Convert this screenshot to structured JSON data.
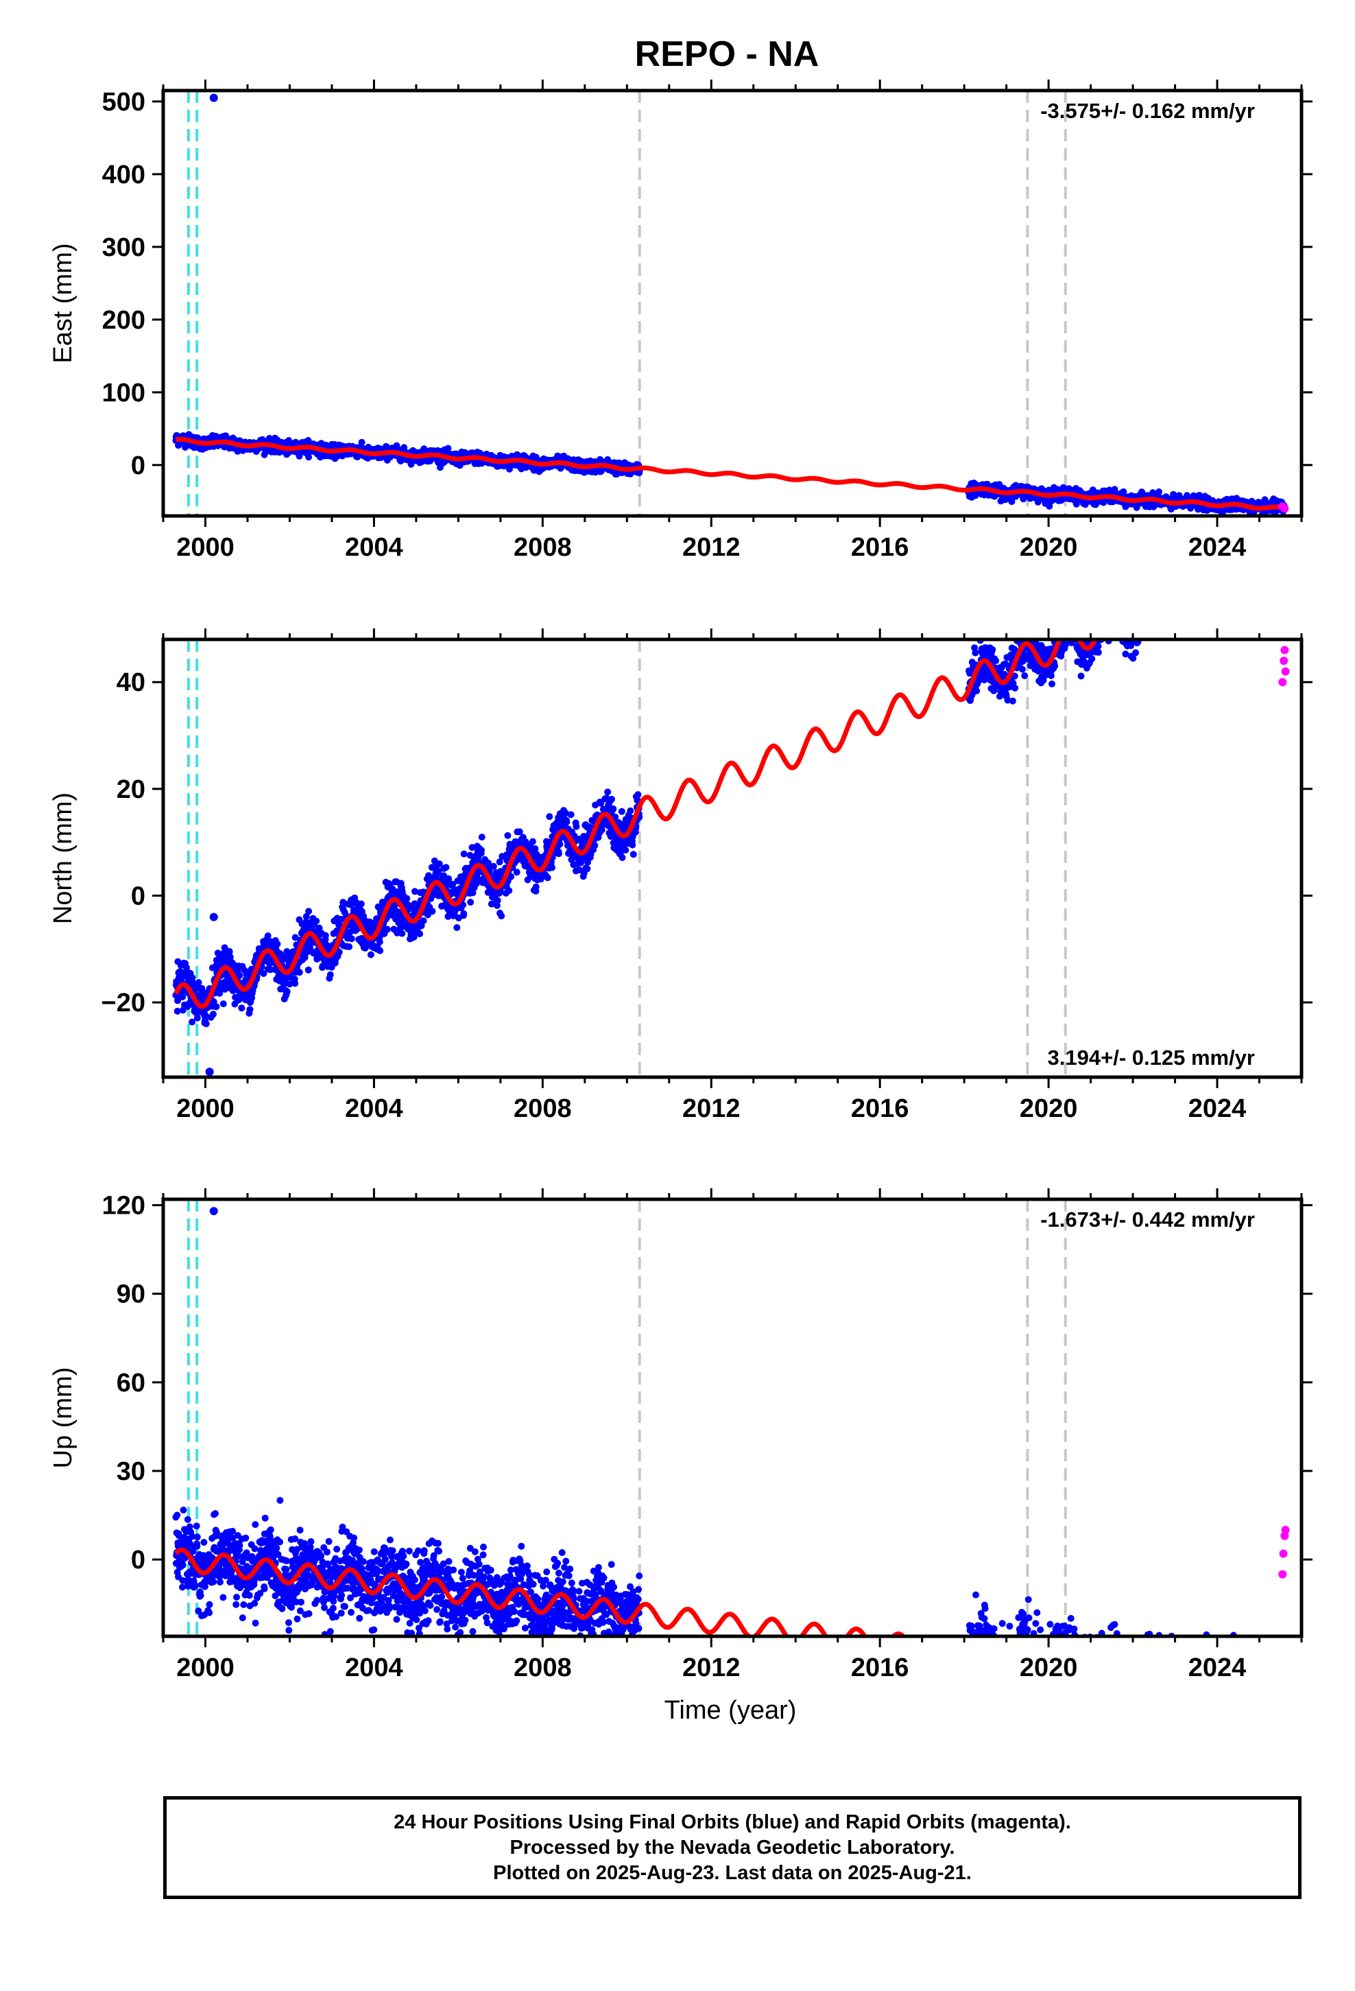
{
  "title": "REPO - NA",
  "xlabel": "Time (year)",
  "footer": {
    "line1": "24 Hour Positions Using Final Orbits (blue) and Rapid Orbits (magenta).",
    "line2": "Processed by the Nevada Geodetic Laboratory.",
    "line3": "Plotted on 2025-Aug-23. Last data on 2025-Aug-21."
  },
  "colors": {
    "final_orbits": "#0000ff",
    "rapid_orbits": "#ff00ff",
    "model": "#ff0000",
    "equipment_change": "#c8c8c8",
    "antenna_change": "#40e0e0"
  },
  "chart_data": [
    {
      "type": "scatter",
      "ylabel": "East (mm)",
      "xlim": [
        1999.0,
        2026.0
      ],
      "ylim": [
        -70,
        515
      ],
      "xticks": [
        2000,
        2004,
        2008,
        2012,
        2016,
        2020,
        2024
      ],
      "yticks": [
        0,
        100,
        200,
        300,
        400,
        500
      ],
      "annotation": "-3.575+/- 0.162 mm/yr",
      "annotation_position": "top-right",
      "grid": false,
      "model": {
        "x0": 1999.3,
        "y0": 34,
        "rate": -3.575,
        "amplitude": 1.8,
        "data_intervals": [
          [
            1999.3,
            2010.3
          ],
          [
            2018.1,
            2025.6
          ]
        ],
        "gap_intervals": [
          [
            2010.3,
            2018.1
          ]
        ]
      },
      "scatter_spread": 4,
      "outliers": [
        {
          "x": 2000.2,
          "y": 505
        }
      ],
      "rapid_points": [
        {
          "x": 2025.55,
          "y": -57
        },
        {
          "x": 2025.6,
          "y": -60
        }
      ],
      "vertical_lines": [
        {
          "x": 1999.6,
          "kind": "antenna"
        },
        {
          "x": 1999.8,
          "kind": "antenna"
        },
        {
          "x": 2010.3,
          "kind": "equipment"
        },
        {
          "x": 2019.5,
          "kind": "equipment"
        },
        {
          "x": 2020.4,
          "kind": "equipment"
        }
      ]
    },
    {
      "type": "scatter",
      "ylabel": "North (mm)",
      "xlim": [
        1999.0,
        2026.0
      ],
      "ylim": [
        -34,
        48
      ],
      "xticks": [
        2000,
        2004,
        2008,
        2012,
        2016,
        2020,
        2024
      ],
      "yticks": [
        -20,
        0,
        20,
        40
      ],
      "annotation": "3.194+/- 0.125 mm/yr",
      "annotation_position": "bottom-right",
      "grid": false,
      "model": {
        "x0": 1999.3,
        "y0": -20,
        "rate": 3.194,
        "amplitude": 2.8,
        "data_intervals": [
          [
            1999.3,
            2010.3
          ],
          [
            2018.1,
            2025.6
          ]
        ],
        "gap_intervals": [
          [
            2010.3,
            2018.1
          ]
        ]
      },
      "scatter_spread": 2,
      "outliers": [
        {
          "x": 2000.2,
          "y": -4
        },
        {
          "x": 2000.1,
          "y": -33
        }
      ],
      "rapid_points": [
        {
          "x": 2025.55,
          "y": 40
        },
        {
          "x": 2025.58,
          "y": 44
        },
        {
          "x": 2025.6,
          "y": 46
        },
        {
          "x": 2025.62,
          "y": 42
        }
      ],
      "vertical_lines": [
        {
          "x": 1999.6,
          "kind": "antenna"
        },
        {
          "x": 1999.8,
          "kind": "antenna"
        },
        {
          "x": 2010.3,
          "kind": "equipment"
        },
        {
          "x": 2019.5,
          "kind": "equipment"
        },
        {
          "x": 2020.4,
          "kind": "equipment"
        }
      ]
    },
    {
      "type": "scatter",
      "ylabel": "Up (mm)",
      "xlim": [
        1999.0,
        2026.0
      ],
      "ylim": [
        -26,
        122
      ],
      "xticks": [
        2000,
        2004,
        2008,
        2012,
        2016,
        2020,
        2024
      ],
      "yticks": [
        0,
        30,
        60,
        90,
        120
      ],
      "annotation": "-1.673+/- 0.442 mm/yr",
      "annotation_position": "top-right",
      "grid": false,
      "model": {
        "x0": 1999.3,
        "y0": 0,
        "rate": -1.673,
        "amplitude": 3.5,
        "data_intervals": [
          [
            1999.3,
            2010.3
          ],
          [
            2018.1,
            2025.6
          ]
        ],
        "gap_intervals": [
          [
            2010.3,
            2018.1
          ]
        ]
      },
      "scatter_spread": 6,
      "outliers": [
        {
          "x": 2000.2,
          "y": 118
        },
        {
          "x": 2019.4,
          "y": -22
        }
      ],
      "rapid_points": [
        {
          "x": 2025.55,
          "y": -5
        },
        {
          "x": 2025.57,
          "y": 2
        },
        {
          "x": 2025.6,
          "y": 8
        },
        {
          "x": 2025.62,
          "y": 10
        }
      ],
      "vertical_lines": [
        {
          "x": 1999.6,
          "kind": "antenna"
        },
        {
          "x": 1999.8,
          "kind": "antenna"
        },
        {
          "x": 2010.3,
          "kind": "equipment"
        },
        {
          "x": 2019.5,
          "kind": "equipment"
        },
        {
          "x": 2020.4,
          "kind": "equipment"
        }
      ]
    }
  ]
}
